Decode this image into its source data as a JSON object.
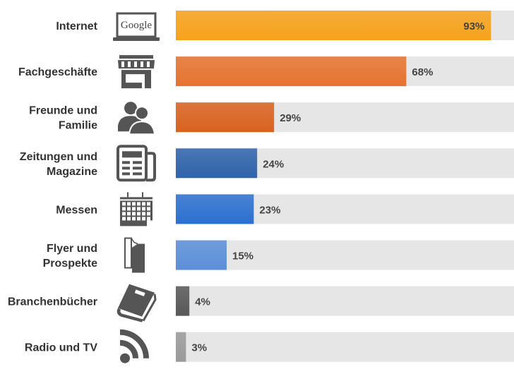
{
  "chart_data": {
    "type": "bar",
    "orientation": "horizontal",
    "categories": [
      [
        "Internet"
      ],
      [
        "Fachgeschäfte"
      ],
      [
        "Freunde und",
        "Familie"
      ],
      [
        "Zeitungen und",
        "Magazine"
      ],
      [
        "Messen"
      ],
      [
        "Flyer und",
        "Prospekte"
      ],
      [
        "Branchenbücher"
      ],
      [
        "Radio und TV"
      ]
    ],
    "values": [
      93,
      68,
      29,
      24,
      23,
      15,
      4,
      3
    ],
    "value_labels": [
      "93%",
      "68%",
      "29%",
      "24%",
      "23%",
      "15%",
      "4%",
      "3%"
    ],
    "icons": [
      "laptop-google-icon",
      "shop-icon",
      "people-icon",
      "newspaper-icon",
      "calendar-icon",
      "flyer-icon",
      "book-icon",
      "broadcast-icon"
    ],
    "icon_text": "Google",
    "colors": [
      "#f7a21b",
      "#e6732f",
      "#d9621f",
      "#2f63ab",
      "#2c70d0",
      "#5b8fd9",
      "#585858",
      "#9a9a9a"
    ],
    "track_color": "#e6e6e6",
    "xlim": [
      0,
      100
    ],
    "grid": false,
    "legend": "none",
    "title": "",
    "xlabel": "",
    "ylabel": ""
  }
}
